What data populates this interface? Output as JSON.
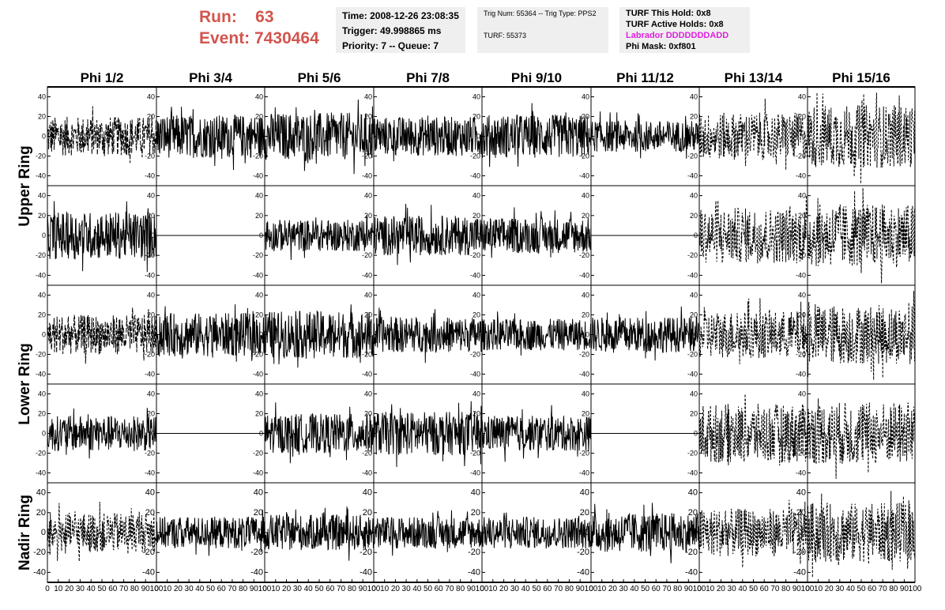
{
  "header": {
    "run_label": "Run:",
    "run_value": "63",
    "event_label": "Event:",
    "event_value": "7430464"
  },
  "info_time": {
    "time": "Time: 2008-12-26 23:08:35",
    "trigger": "Trigger: 49.998865 ms",
    "priority": "Priority: 7 -- Queue: 7"
  },
  "info_trig": {
    "trig": "Trig Num: 55364 -- Trig Type: PPS2",
    "turf": "TURF: 55373"
  },
  "info_turf": {
    "this_hold": "TURF This Hold: 0x8",
    "active_holds": "TURF Active Holds: 0x8",
    "labrador": "Labrador DDDDDDDADD",
    "phi_mask": "Phi Mask: 0xf801"
  },
  "colors": {
    "header_red": "#d2554e",
    "labrador_magenta": "#e020e0",
    "panel_bg": "#efefef"
  },
  "chart_data": {
    "type": "line",
    "columns": [
      "Phi 1/2",
      "Phi 3/4",
      "Phi 5/6",
      "Phi 7/8",
      "Phi 9/10",
      "Phi 11/12",
      "Phi 13/14",
      "Phi 15/16"
    ],
    "rows": [
      "Upper Ring",
      "Lower Ring",
      "Nadir Ring"
    ],
    "x_ticks": [
      "0",
      "10",
      "20",
      "30",
      "40",
      "50",
      "60",
      "70",
      "80",
      "90",
      "100"
    ],
    "y_ticks": [
      "40",
      "20",
      "0",
      "-20",
      "-40"
    ],
    "xlim": [
      0,
      100
    ],
    "ylim": [
      -50,
      50
    ],
    "grid": false,
    "traces": [
      {
        "row": 1,
        "col": 1,
        "style": "mixed",
        "amp": 20,
        "flat": false
      },
      {
        "row": 1,
        "col": 2,
        "style": "solid",
        "amp": 22,
        "flat": false
      },
      {
        "row": 1,
        "col": 3,
        "style": "solid",
        "amp": 24,
        "flat": false
      },
      {
        "row": 1,
        "col": 4,
        "style": "solid",
        "amp": 20,
        "flat": false
      },
      {
        "row": 1,
        "col": 5,
        "style": "solid",
        "amp": 22,
        "flat": false
      },
      {
        "row": 1,
        "col": 6,
        "style": "solid",
        "amp": 16,
        "flat": false
      },
      {
        "row": 1,
        "col": 7,
        "style": "dashed",
        "amp": 24,
        "flat": false
      },
      {
        "row": 1,
        "col": 8,
        "style": "dashed",
        "amp": 32,
        "flat": false
      },
      {
        "row": 2,
        "col": 1,
        "style": "solid",
        "amp": 24,
        "flat": false
      },
      {
        "row": 2,
        "col": 2,
        "style": "solid",
        "amp": 0,
        "flat": true
      },
      {
        "row": 2,
        "col": 3,
        "style": "solid",
        "amp": 16,
        "flat": false
      },
      {
        "row": 2,
        "col": 4,
        "style": "solid",
        "amp": 20,
        "flat": false
      },
      {
        "row": 2,
        "col": 5,
        "style": "solid",
        "amp": 18,
        "flat": false
      },
      {
        "row": 2,
        "col": 6,
        "style": "solid",
        "amp": 0,
        "flat": true
      },
      {
        "row": 2,
        "col": 7,
        "style": "dashed",
        "amp": 28,
        "flat": false
      },
      {
        "row": 2,
        "col": 8,
        "style": "dashed",
        "amp": 32,
        "flat": false
      },
      {
        "row": 3,
        "col": 1,
        "style": "mixed",
        "amp": 20,
        "flat": false
      },
      {
        "row": 3,
        "col": 2,
        "style": "solid",
        "amp": 22,
        "flat": false
      },
      {
        "row": 3,
        "col": 3,
        "style": "solid",
        "amp": 24,
        "flat": false
      },
      {
        "row": 3,
        "col": 4,
        "style": "solid",
        "amp": 18,
        "flat": false
      },
      {
        "row": 3,
        "col": 5,
        "style": "solid",
        "amp": 16,
        "flat": false
      },
      {
        "row": 3,
        "col": 6,
        "style": "solid",
        "amp": 18,
        "flat": false
      },
      {
        "row": 3,
        "col": 7,
        "style": "dashed",
        "amp": 24,
        "flat": false
      },
      {
        "row": 3,
        "col": 8,
        "style": "dashed",
        "amp": 30,
        "flat": false
      },
      {
        "row": 4,
        "col": 1,
        "style": "solid",
        "amp": 18,
        "flat": false
      },
      {
        "row": 4,
        "col": 2,
        "style": "solid",
        "amp": 0,
        "flat": true
      },
      {
        "row": 4,
        "col": 3,
        "style": "solid",
        "amp": 20,
        "flat": false
      },
      {
        "row": 4,
        "col": 4,
        "style": "solid",
        "amp": 22,
        "flat": false
      },
      {
        "row": 4,
        "col": 5,
        "style": "solid",
        "amp": 18,
        "flat": false
      },
      {
        "row": 4,
        "col": 6,
        "style": "solid",
        "amp": 0,
        "flat": true
      },
      {
        "row": 4,
        "col": 7,
        "style": "dashed",
        "amp": 30,
        "flat": false
      },
      {
        "row": 4,
        "col": 8,
        "style": "dashed",
        "amp": 32,
        "flat": false
      },
      {
        "row": 5,
        "col": 1,
        "style": "dashed",
        "amp": 20,
        "flat": false
      },
      {
        "row": 5,
        "col": 2,
        "style": "solid",
        "amp": 16,
        "flat": false
      },
      {
        "row": 5,
        "col": 3,
        "style": "solid",
        "amp": 18,
        "flat": false
      },
      {
        "row": 5,
        "col": 4,
        "style": "solid",
        "amp": 16,
        "flat": false
      },
      {
        "row": 5,
        "col": 5,
        "style": "solid",
        "amp": 16,
        "flat": false
      },
      {
        "row": 5,
        "col": 6,
        "style": "solid",
        "amp": 20,
        "flat": false
      },
      {
        "row": 5,
        "col": 7,
        "style": "dashed",
        "amp": 24,
        "flat": false
      },
      {
        "row": 5,
        "col": 8,
        "style": "dashed",
        "amp": 30,
        "flat": false
      }
    ]
  }
}
